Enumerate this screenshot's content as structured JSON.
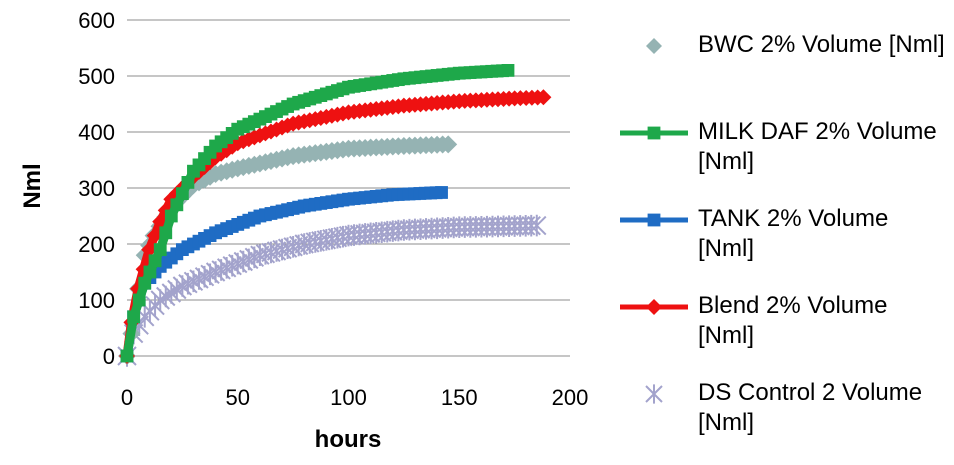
{
  "chart_data": {
    "type": "line",
    "xlabel": "hours",
    "ylabel": "Nml",
    "xlim": [
      0,
      200
    ],
    "ylim": [
      0,
      600
    ],
    "xticks": [
      "0",
      "50",
      "100",
      "150",
      "200"
    ],
    "yticks": [
      "0",
      "100",
      "200",
      "300",
      "400",
      "500",
      "600"
    ],
    "grid": "horizontal",
    "legend_position": "right",
    "series": [
      {
        "name": "BWC 2% Volume [Nml]",
        "color": "#95b3b3",
        "marker": "diamond",
        "line": false,
        "points": [
          [
            0,
            0
          ],
          [
            2,
            40
          ],
          [
            5,
            120
          ],
          [
            8,
            180
          ],
          [
            12,
            215
          ],
          [
            20,
            265
          ],
          [
            30,
            305
          ],
          [
            40,
            325
          ],
          [
            50,
            335
          ],
          [
            75,
            357
          ],
          [
            100,
            370
          ],
          [
            125,
            375
          ],
          [
            145,
            378
          ]
        ]
      },
      {
        "name": "MILK DAF 2% Volume [Nml]",
        "color": "#1ea84a",
        "marker": "square",
        "line": true,
        "points": [
          [
            0,
            0
          ],
          [
            3,
            70
          ],
          [
            8,
            130
          ],
          [
            15,
            190
          ],
          [
            20,
            250
          ],
          [
            30,
            330
          ],
          [
            40,
            375
          ],
          [
            50,
            405
          ],
          [
            75,
            450
          ],
          [
            100,
            480
          ],
          [
            125,
            495
          ],
          [
            150,
            505
          ],
          [
            172,
            510
          ]
        ]
      },
      {
        "name": "TANK 2% Volume [Nml]",
        "color": "#1f6cc4",
        "marker": "square",
        "line": true,
        "points": [
          [
            0,
            0
          ],
          [
            3,
            70
          ],
          [
            8,
            130
          ],
          [
            15,
            160
          ],
          [
            25,
            190
          ],
          [
            40,
            220
          ],
          [
            60,
            250
          ],
          [
            80,
            268
          ],
          [
            100,
            280
          ],
          [
            120,
            288
          ],
          [
            142,
            292
          ]
        ]
      },
      {
        "name": "Blend 2% Volume [Nml]",
        "color": "#ee1111",
        "marker": "diamond",
        "line": true,
        "points": [
          [
            0,
            0
          ],
          [
            2,
            60
          ],
          [
            5,
            120
          ],
          [
            10,
            190
          ],
          [
            15,
            240
          ],
          [
            20,
            280
          ],
          [
            30,
            320
          ],
          [
            40,
            355
          ],
          [
            50,
            380
          ],
          [
            75,
            415
          ],
          [
            100,
            435
          ],
          [
            125,
            447
          ],
          [
            150,
            455
          ],
          [
            175,
            460
          ],
          [
            188,
            462
          ]
        ]
      },
      {
        "name": "DS Control 2 Volume [Nml]",
        "color": "#a3a3cc",
        "marker": "asterisk",
        "line": false,
        "points": [
          [
            0,
            0
          ],
          [
            3,
            40
          ],
          [
            8,
            70
          ],
          [
            15,
            100
          ],
          [
            25,
            125
          ],
          [
            40,
            150
          ],
          [
            60,
            180
          ],
          [
            80,
            200
          ],
          [
            100,
            215
          ],
          [
            125,
            225
          ],
          [
            150,
            230
          ],
          [
            175,
            232
          ],
          [
            185,
            233
          ]
        ]
      }
    ]
  }
}
